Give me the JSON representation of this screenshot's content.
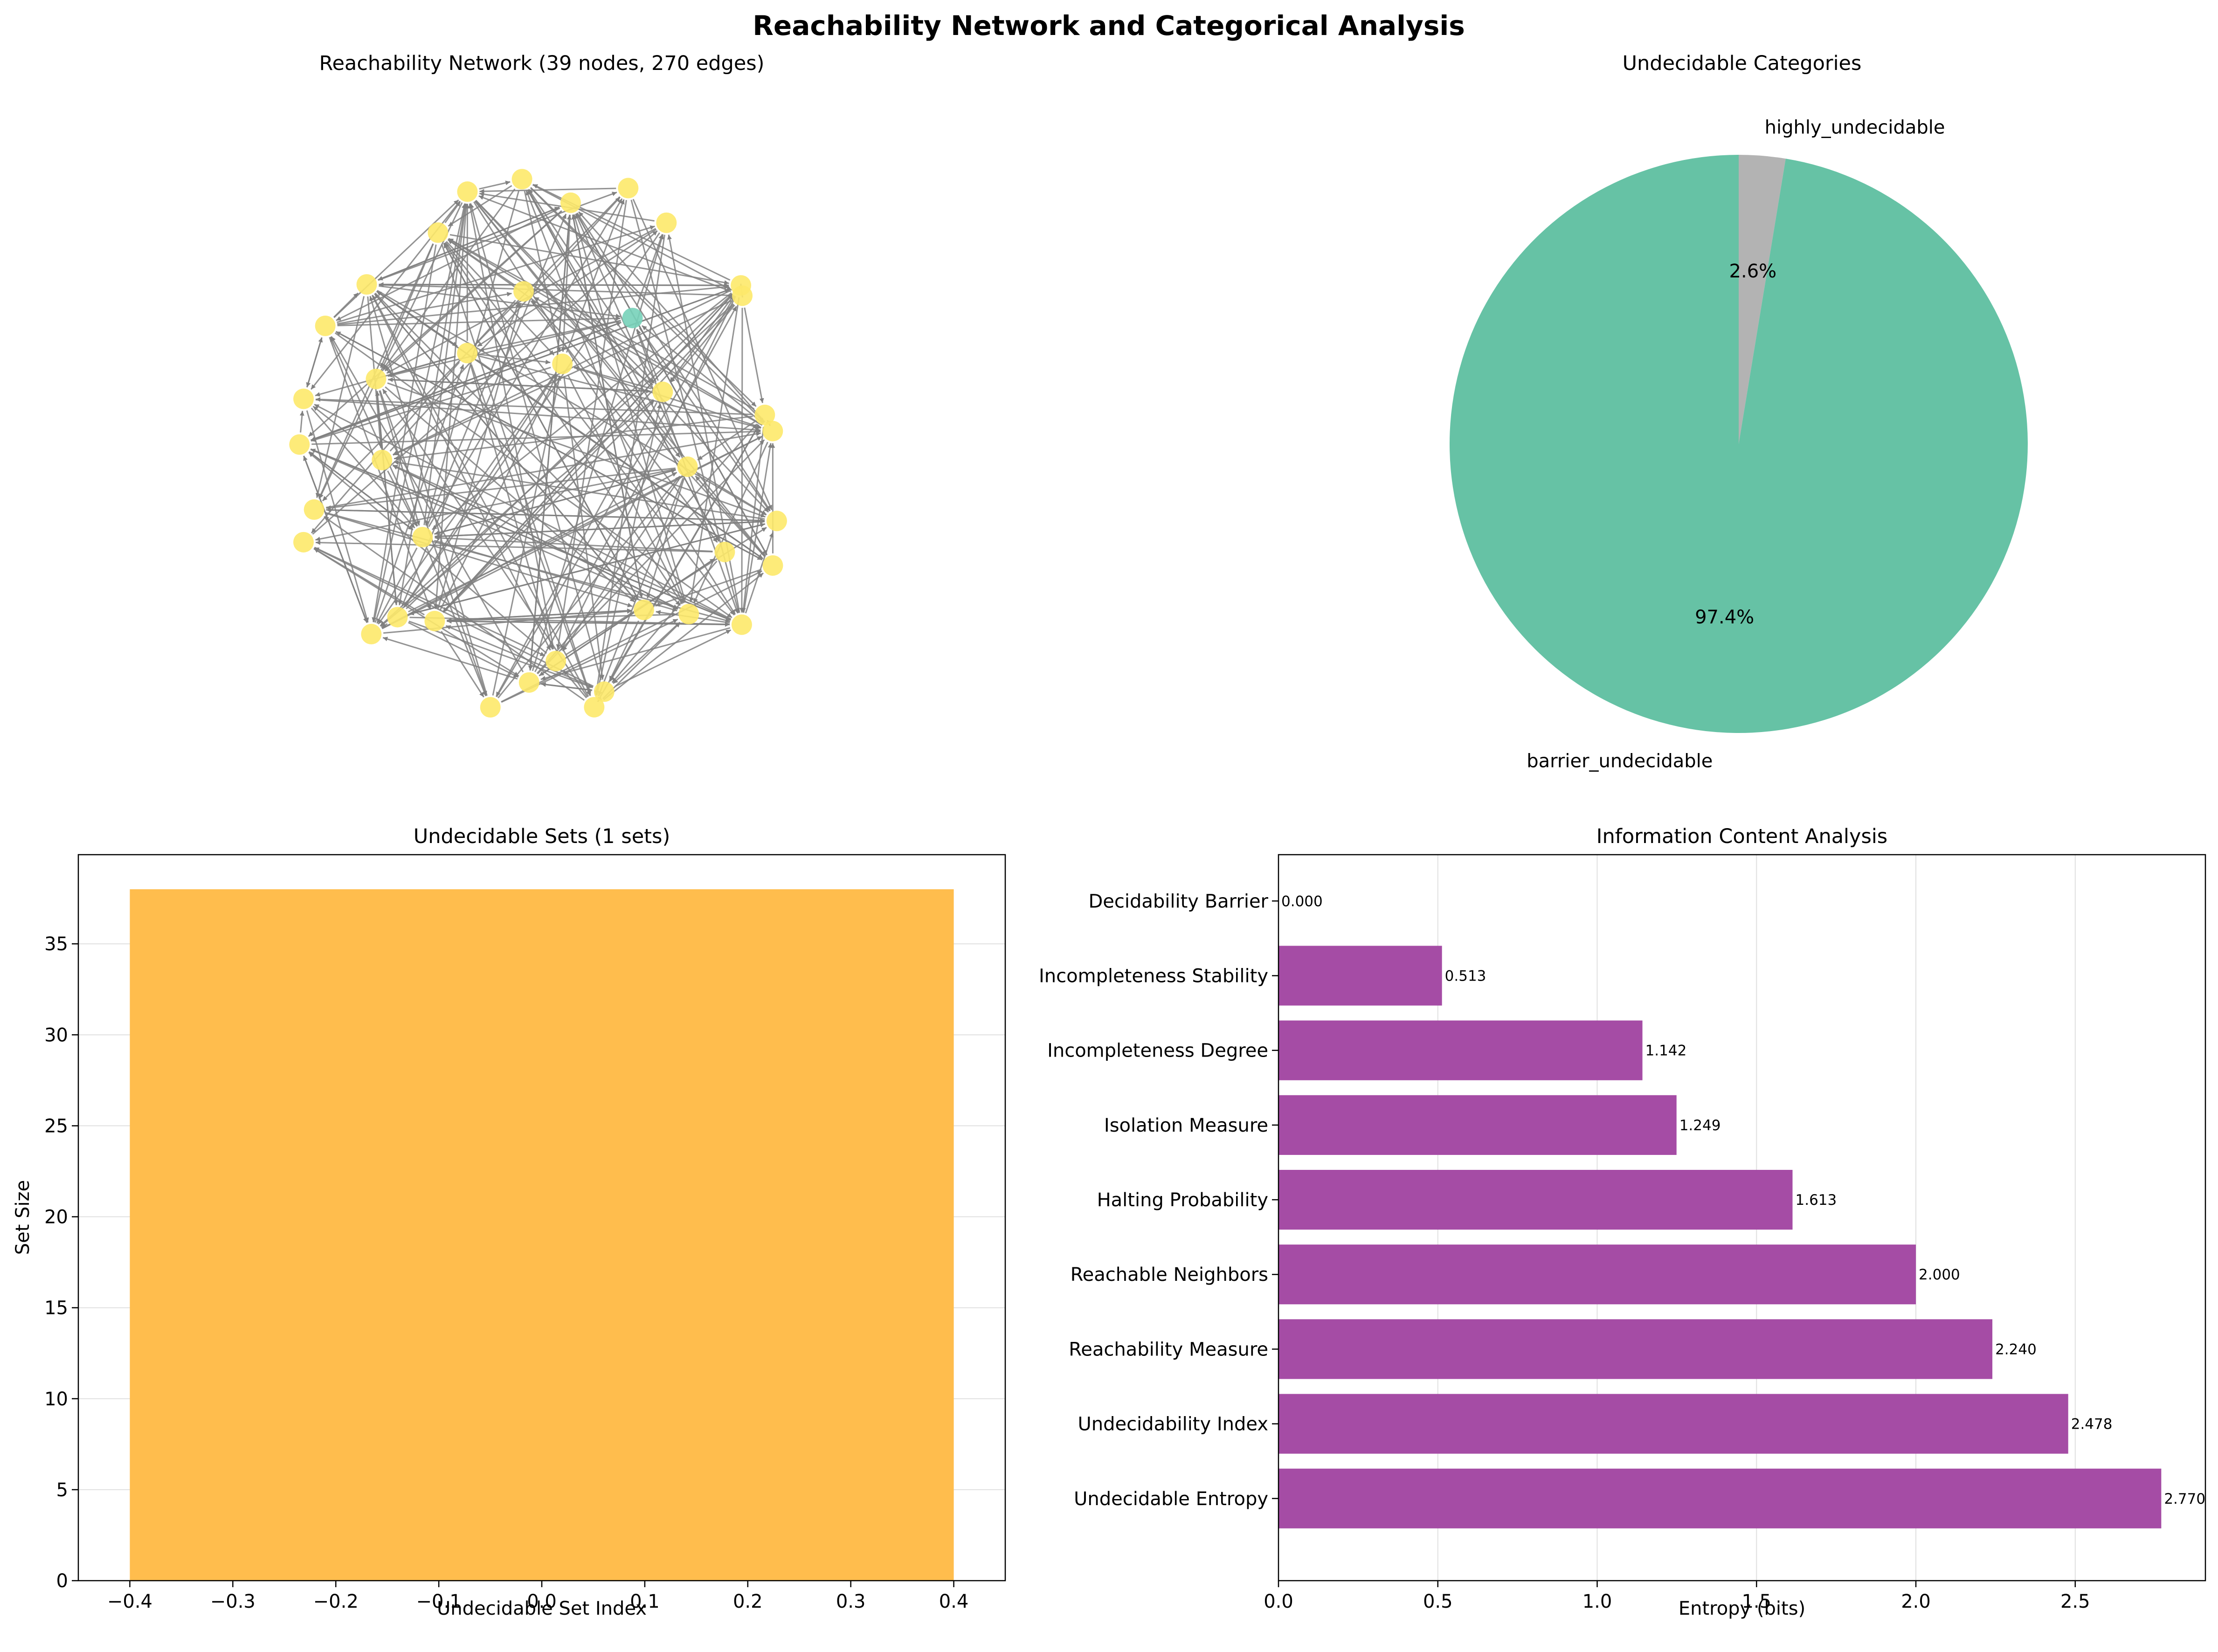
{
  "figure": {
    "title": "Reachability Network and Categorical Analysis"
  },
  "colors": {
    "node_main": "#fde96a",
    "node_special": "#77d1b9",
    "edge": "#808080",
    "pie_barrier": "#66c2a5",
    "pie_highly": "#b3b3b3",
    "bar_sets": "#ffbd4d",
    "bar_entropy": "#a54ca5",
    "grid": "#e0e0e0"
  },
  "chart_data": [
    {
      "type": "network",
      "title": "Reachability Network (39 nodes, 270 edges)",
      "node_count": 39,
      "edge_count": 270,
      "node_categories": [
        {
          "name": "barrier_undecidable",
          "count": 38
        },
        {
          "name": "highly_undecidable",
          "count": 1
        }
      ]
    },
    {
      "type": "pie",
      "title": "Undecidable Categories",
      "slices": [
        {
          "label": "barrier_undecidable",
          "value": 97.4,
          "pct_label": "97.4%"
        },
        {
          "label": "highly_undecidable",
          "value": 2.6,
          "pct_label": "2.6%"
        }
      ]
    },
    {
      "type": "bar",
      "title": "Undecidable Sets (1 sets)",
      "xlabel": "Undecidable Set Index",
      "ylabel": "Set Size",
      "categories": [
        0
      ],
      "values": [
        38
      ],
      "xlim": [
        -0.45,
        0.45
      ],
      "ylim": [
        0,
        39.9
      ],
      "xticks": [
        "−0.4",
        "−0.3",
        "−0.2",
        "−0.1",
        "0.0",
        "0.1",
        "0.2",
        "0.3",
        "0.4"
      ],
      "yticks": [
        "0",
        "5",
        "10",
        "15",
        "20",
        "25",
        "30",
        "35"
      ],
      "grid": true
    },
    {
      "type": "bar",
      "orientation": "horizontal",
      "title": "Information Content Analysis",
      "xlabel": "Entropy (bits)",
      "ylabel": "",
      "categories": [
        "Undecidable Entropy",
        "Undecidability Index",
        "Reachability Measure",
        "Reachable Neighbors",
        "Halting Probability",
        "Isolation Measure",
        "Incompleteness Degree",
        "Incompleteness Stability",
        "Decidability Barrier"
      ],
      "values": [
        2.77,
        2.478,
        2.24,
        2.0,
        1.613,
        1.249,
        1.142,
        0.513,
        0.0
      ],
      "value_labels": [
        "2.770",
        "2.478",
        "2.240",
        "2.000",
        "1.613",
        "1.249",
        "1.142",
        "0.513",
        "0.000"
      ],
      "xlim": [
        0,
        2.9085
      ],
      "xticks": [
        "0.0",
        "0.5",
        "1.0",
        "1.5",
        "2.0",
        "2.5"
      ],
      "grid": true
    }
  ]
}
